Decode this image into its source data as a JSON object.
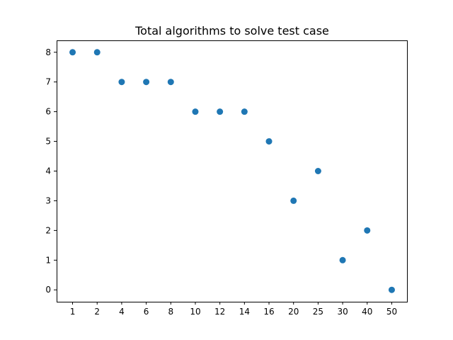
{
  "chart_data": {
    "type": "scatter",
    "title": "Total algorithms to solve test case",
    "xlabel": "",
    "ylabel": "",
    "categories": [
      "1",
      "2",
      "4",
      "6",
      "8",
      "10",
      "12",
      "14",
      "16",
      "20",
      "25",
      "30",
      "40",
      "50"
    ],
    "values": [
      8,
      8,
      7,
      7,
      7,
      6,
      6,
      6,
      5,
      3,
      4,
      1,
      2,
      0
    ],
    "yticks": [
      0,
      1,
      2,
      3,
      4,
      5,
      6,
      7,
      8
    ],
    "ylim": [
      -0.4,
      8.4
    ],
    "grid": false,
    "marker_color": "#1f77b4"
  }
}
